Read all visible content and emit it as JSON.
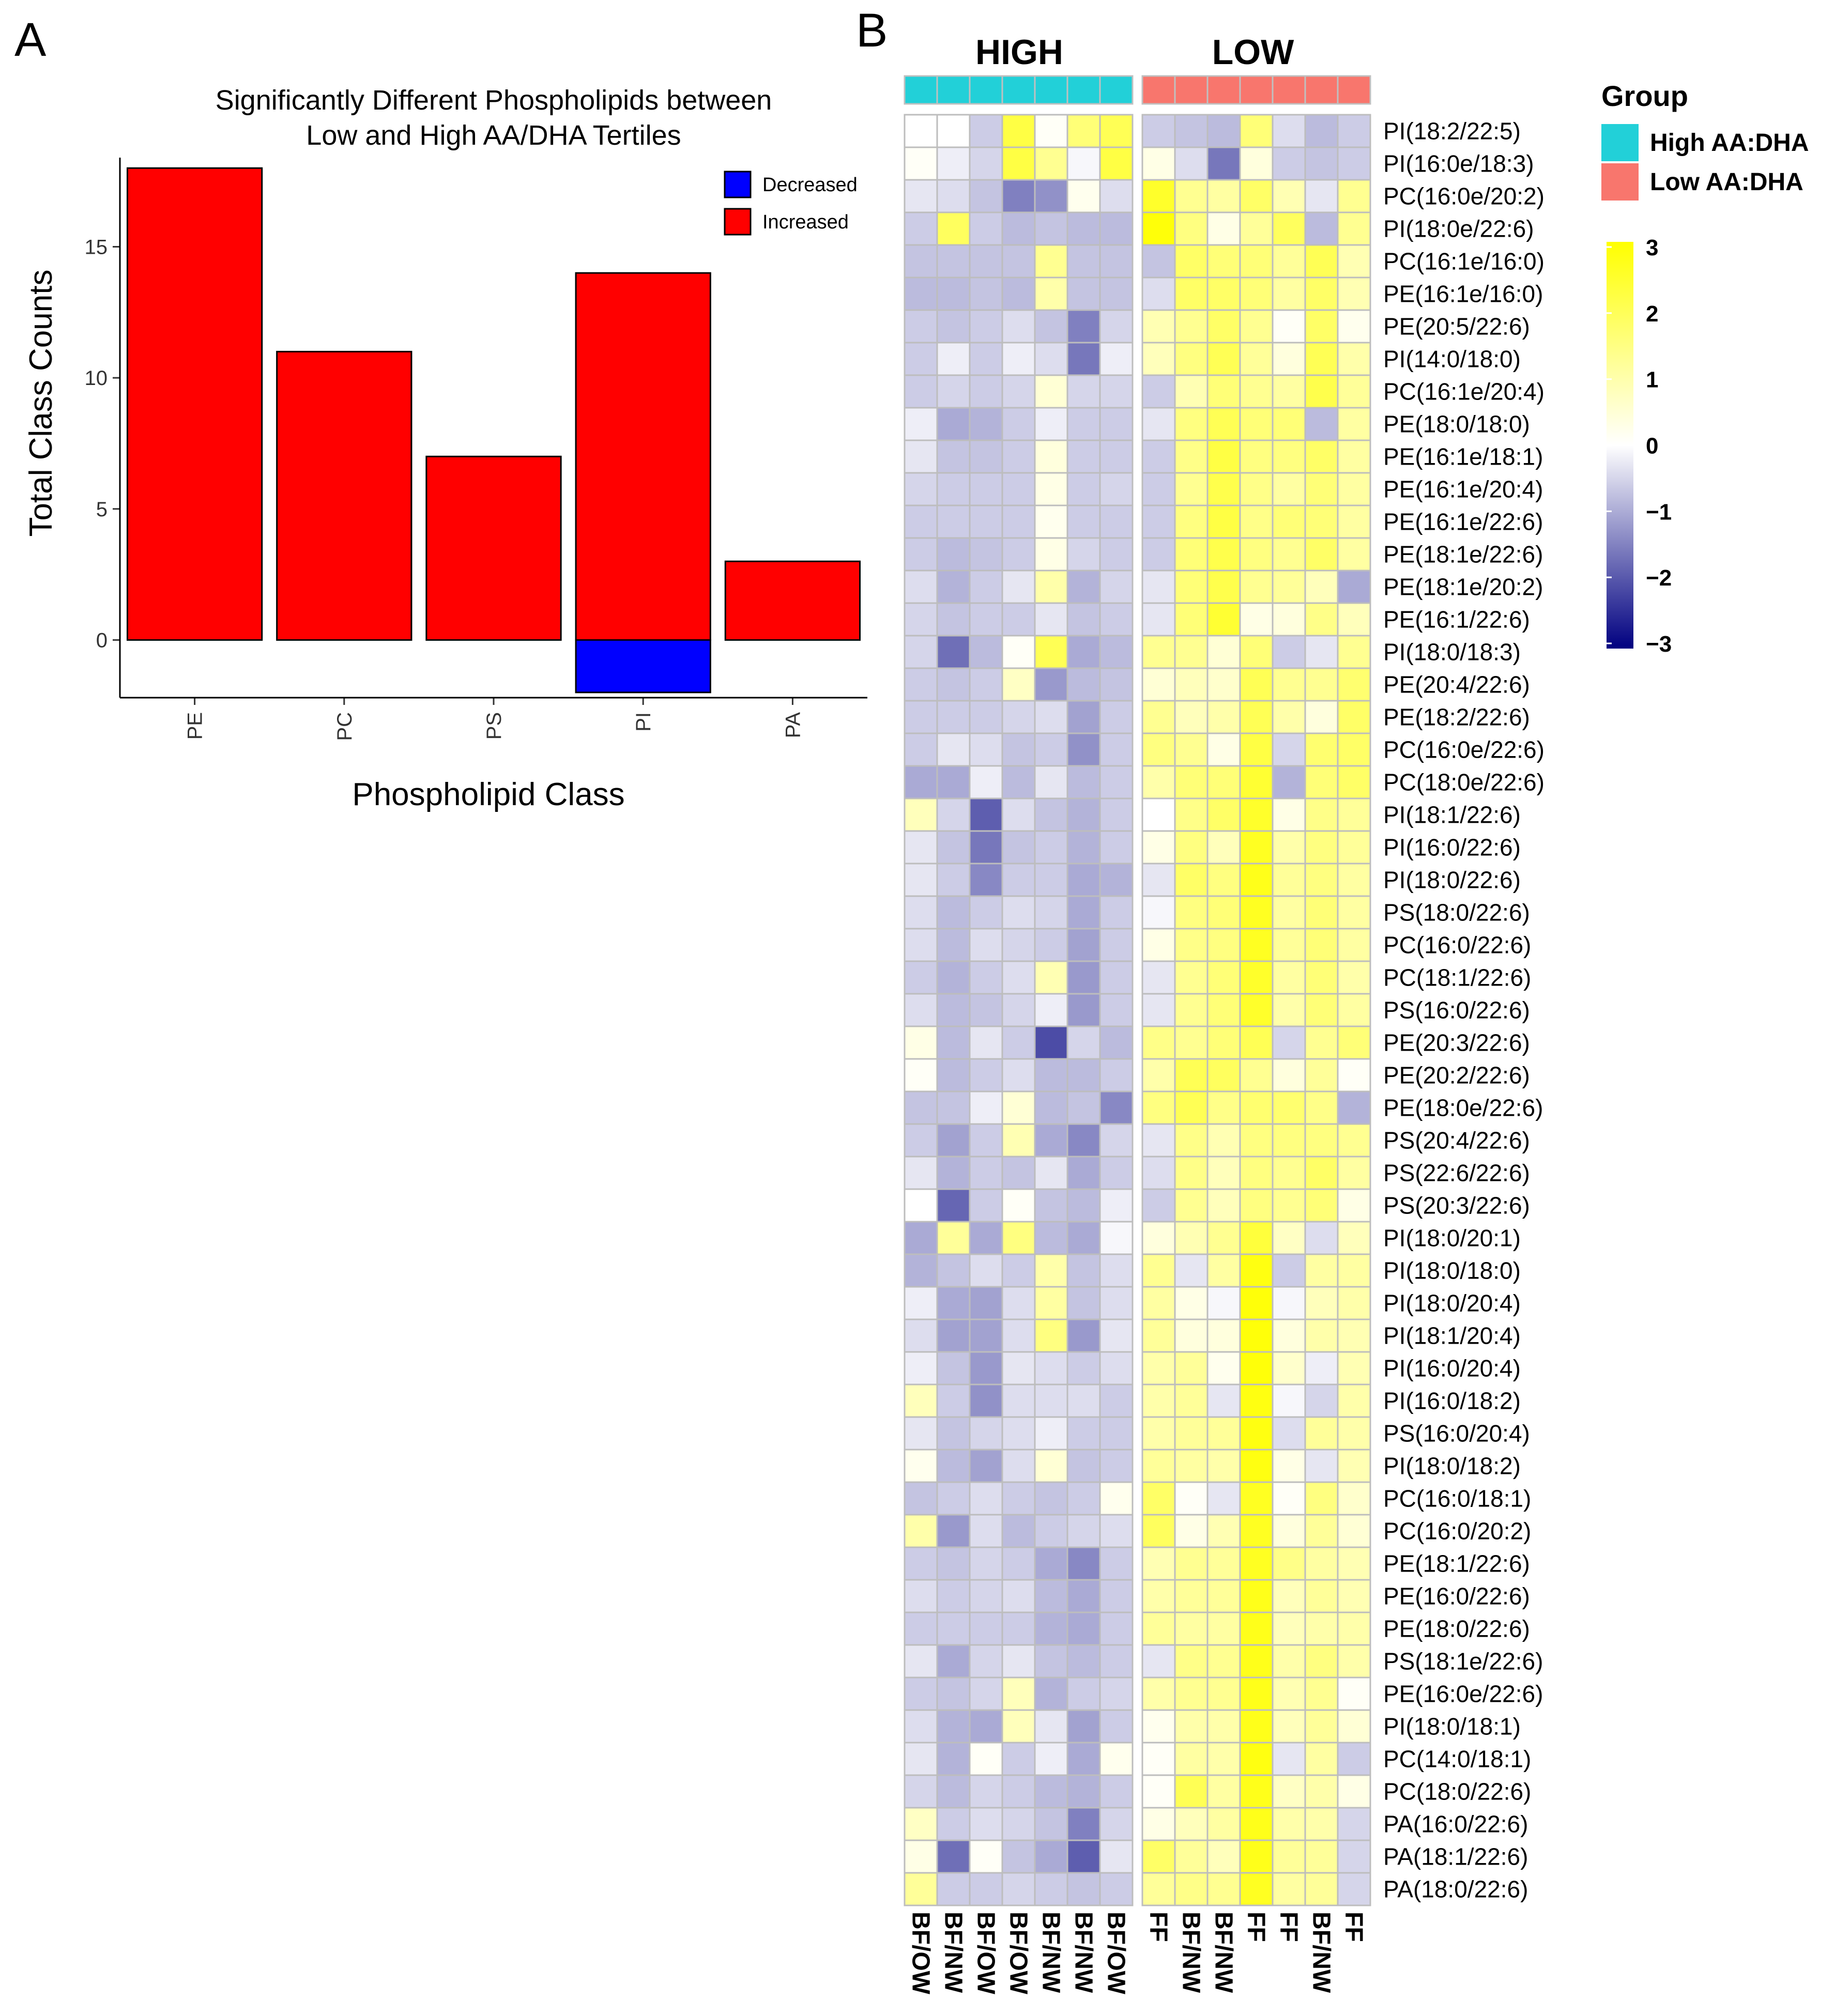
{
  "panel_a_letter": "A",
  "panel_b_letter": "B",
  "chart_data": [
    {
      "type": "bar",
      "title": "Significantly Different Phospholipids between Low and High AA/DHA Tertiles",
      "title_lines": [
        "Significantly Different Phospholipids between",
        "Low and High AA/DHA Tertiles"
      ],
      "xlabel": "Phospholipid Class",
      "ylabel": "Total Class Counts",
      "categories": [
        "PE",
        "PC",
        "PS",
        "PI",
        "PA"
      ],
      "series": [
        {
          "name": "Increased",
          "color": "#ff0000",
          "values": [
            18,
            11,
            7,
            14,
            3
          ]
        },
        {
          "name": "Decreased",
          "color": "#0000ff",
          "values": [
            0,
            0,
            0,
            -2,
            0
          ]
        }
      ],
      "ylim": [
        -2.2,
        18.4
      ],
      "yticks": [
        0,
        5,
        10,
        15
      ],
      "legend": [
        {
          "label": "Decreased",
          "color": "#0000ff"
        },
        {
          "label": "Increased",
          "color": "#ff0000"
        }
      ],
      "legend_position": "top-right"
    },
    {
      "type": "heatmap",
      "group_headers": [
        "HIGH",
        "LOW"
      ],
      "columns": [
        "BF/OW",
        "BF/NW",
        "BF/OW",
        "BF/OW",
        "BF/NW",
        "BF/NW",
        "BF/OW",
        "FF",
        "BF/NW",
        "BF/NW",
        "FF",
        "FF",
        "BF/NW",
        "FF"
      ],
      "column_groups": [
        "High AA:DHA",
        "High AA:DHA",
        "High AA:DHA",
        "High AA:DHA",
        "High AA:DHA",
        "High AA:DHA",
        "High AA:DHA",
        "Low AA:DHA",
        "Low AA:DHA",
        "Low AA:DHA",
        "Low AA:DHA",
        "Low AA:DHA",
        "Low AA:DHA",
        "Low AA:DHA"
      ],
      "rows": [
        "PI(18:2/22:5)",
        "PI(16:0e/18:3)",
        "PC(16:0e/20:2)",
        "PI(18:0e/22:6)",
        "PC(16:1e/16:0)",
        "PE(16:1e/16:0)",
        "PE(20:5/22:6)",
        "PI(14:0/18:0)",
        "PC(16:1e/20:4)",
        "PE(18:0/18:0)",
        "PE(16:1e/18:1)",
        "PE(16:1e/20:4)",
        "PE(16:1e/22:6)",
        "PE(18:1e/22:6)",
        "PE(18:1e/20:2)",
        "PE(16:1/22:6)",
        "PI(18:0/18:3)",
        "PE(20:4/22:6)",
        "PE(18:2/22:6)",
        "PC(16:0e/22:6)",
        "PC(18:0e/22:6)",
        "PI(18:1/22:6)",
        "PI(16:0/22:6)",
        "PI(18:0/22:6)",
        "PS(18:0/22:6)",
        "PC(16:0/22:6)",
        "PC(18:1/22:6)",
        "PS(16:0/22:6)",
        "PE(20:3/22:6)",
        "PE(20:2/22:6)",
        "PE(18:0e/22:6)",
        "PS(20:4/22:6)",
        "PS(22:6/22:6)",
        "PS(20:3/22:6)",
        "PI(18:0/20:1)",
        "PI(18:0/18:0)",
        "PI(18:0/20:4)",
        "PI(18:1/20:4)",
        "PI(16:0/20:4)",
        "PI(16:0/18:2)",
        "PS(16:0/20:4)",
        "PI(18:0/18:2)",
        "PC(16:0/18:1)",
        "PC(16:0/20:2)",
        "PE(18:1/22:6)",
        "PE(16:0/22:6)",
        "PE(18:0/22:6)",
        "PS(18:1e/22:6)",
        "PE(16:0e/22:6)",
        "PI(18:0/18:1)",
        "PC(14:0/18:1)",
        "PC(18:0/22:6)",
        "PA(16:0/22:6)",
        "PA(18:1/22:6)",
        "PA(18:0/22:6)"
      ],
      "values": [
        [
          0.0,
          0.0,
          -0.6,
          2.2,
          0.1,
          1.6,
          2.0,
          -0.6,
          -0.7,
          -0.8,
          1.6,
          -0.4,
          -0.8,
          -0.6
        ],
        [
          0.1,
          -0.2,
          -0.5,
          2.2,
          1.3,
          -0.1,
          2.2,
          0.3,
          -0.4,
          -1.6,
          0.4,
          -0.6,
          -0.7,
          -0.6
        ],
        [
          -0.3,
          -0.4,
          -0.7,
          -1.5,
          -1.3,
          0.2,
          -0.4,
          2.5,
          1.3,
          1.1,
          1.8,
          0.9,
          -0.3,
          1.3
        ],
        [
          -0.6,
          1.9,
          -0.6,
          -0.8,
          -0.7,
          -0.8,
          -0.8,
          2.9,
          1.5,
          0.3,
          1.2,
          1.9,
          -0.8,
          1.3
        ],
        [
          -0.7,
          -0.7,
          -0.7,
          -0.7,
          1.3,
          -0.7,
          -0.7,
          -0.7,
          1.8,
          1.6,
          1.6,
          1.2,
          2.0,
          0.9
        ],
        [
          -0.8,
          -0.8,
          -0.7,
          -0.8,
          1.0,
          -0.7,
          -0.7,
          -0.4,
          1.8,
          1.8,
          1.6,
          1.1,
          1.8,
          0.9
        ],
        [
          -0.6,
          -0.7,
          -0.6,
          -0.4,
          -0.7,
          -1.5,
          -0.5,
          0.9,
          1.3,
          1.8,
          1.3,
          0.1,
          1.8,
          0.2
        ],
        [
          -0.6,
          -0.2,
          -0.6,
          -0.2,
          -0.4,
          -1.6,
          -0.2,
          0.8,
          1.5,
          2.0,
          1.2,
          0.4,
          2.0,
          1.0
        ],
        [
          -0.6,
          -0.5,
          -0.6,
          -0.5,
          0.5,
          -0.5,
          -0.5,
          -0.6,
          0.9,
          1.6,
          1.3,
          1.1,
          2.1,
          1.2
        ],
        [
          -0.2,
          -1.0,
          -0.9,
          -0.6,
          -0.2,
          -0.6,
          -0.6,
          -0.3,
          1.5,
          2.0,
          1.6,
          1.6,
          -0.8,
          1.1
        ],
        [
          -0.3,
          -0.7,
          -0.7,
          -0.6,
          0.4,
          -0.6,
          -0.6,
          -0.6,
          1.4,
          2.2,
          1.5,
          1.5,
          1.8,
          1.1
        ],
        [
          -0.5,
          -0.6,
          -0.6,
          -0.6,
          0.3,
          -0.6,
          -0.5,
          -0.6,
          1.3,
          2.1,
          1.4,
          1.1,
          1.6,
          1.1
        ],
        [
          -0.6,
          -0.6,
          -0.6,
          -0.6,
          0.2,
          -0.6,
          -0.6,
          -0.6,
          1.5,
          2.2,
          1.4,
          1.6,
          1.6,
          1.1
        ],
        [
          -0.6,
          -0.8,
          -0.7,
          -0.6,
          0.3,
          -0.5,
          -0.6,
          -0.6,
          1.6,
          2.1,
          1.5,
          1.3,
          1.8,
          1.1
        ],
        [
          -0.4,
          -0.9,
          -0.6,
          -0.3,
          1.0,
          -0.9,
          -0.5,
          -0.3,
          1.6,
          2.1,
          1.3,
          1.2,
          0.8,
          -1.0
        ],
        [
          -0.5,
          -0.7,
          -0.6,
          -0.6,
          -0.3,
          -0.7,
          -0.6,
          -0.3,
          1.6,
          2.4,
          0.3,
          0.4,
          1.4,
          0.8
        ],
        [
          -0.5,
          -1.7,
          -0.8,
          0.1,
          2.0,
          -1.0,
          -0.8,
          1.3,
          1.3,
          0.5,
          1.6,
          -0.6,
          -0.3,
          1.3
        ],
        [
          -0.6,
          -0.7,
          -0.6,
          0.7,
          -1.2,
          -0.8,
          -0.7,
          0.5,
          0.8,
          0.6,
          2.0,
          1.3,
          1.3,
          1.7
        ],
        [
          -0.6,
          -0.6,
          -0.6,
          -0.5,
          -0.4,
          -1.1,
          -0.6,
          1.3,
          0.8,
          1.0,
          2.0,
          1.0,
          0.4,
          1.8
        ],
        [
          -0.6,
          -0.3,
          -0.4,
          -0.7,
          -0.6,
          -1.3,
          -0.6,
          1.5,
          1.3,
          0.3,
          2.2,
          -0.5,
          1.7,
          1.8
        ],
        [
          -1.0,
          -1.0,
          -0.2,
          -0.8,
          -0.3,
          -0.8,
          -0.6,
          1.0,
          1.6,
          1.6,
          2.4,
          -0.9,
          1.6,
          1.8
        ],
        [
          0.8,
          -0.5,
          -1.9,
          -0.4,
          -0.7,
          -0.9,
          -0.6,
          0.0,
          1.4,
          1.8,
          2.5,
          0.3,
          1.4,
          1.2
        ],
        [
          -0.3,
          -0.7,
          -1.6,
          -0.7,
          -0.6,
          -0.9,
          -0.6,
          0.3,
          1.5,
          0.8,
          2.6,
          1.0,
          1.5,
          1.2
        ],
        [
          -0.3,
          -0.6,
          -1.4,
          -0.6,
          -0.6,
          -1.0,
          -0.9,
          -0.3,
          1.8,
          1.5,
          2.7,
          1.2,
          1.5,
          1.1
        ],
        [
          -0.4,
          -0.8,
          -0.6,
          -0.4,
          -0.5,
          -1.0,
          -0.6,
          -0.1,
          1.5,
          1.6,
          2.6,
          1.1,
          1.6,
          1.1
        ],
        [
          -0.4,
          -0.8,
          -0.4,
          -0.5,
          -0.6,
          -1.1,
          -0.6,
          0.3,
          1.4,
          1.5,
          2.6,
          1.2,
          1.6,
          1.1
        ],
        [
          -0.6,
          -0.9,
          -0.6,
          -0.4,
          0.9,
          -1.2,
          -0.6,
          -0.3,
          1.3,
          1.6,
          2.5,
          1.1,
          1.6,
          1.0
        ],
        [
          -0.4,
          -0.8,
          -0.7,
          -0.5,
          -0.2,
          -1.2,
          -0.6,
          -0.3,
          1.3,
          1.6,
          2.5,
          1.0,
          1.6,
          1.1
        ],
        [
          0.3,
          -0.8,
          -0.3,
          -0.6,
          -2.1,
          -0.5,
          -0.8,
          1.4,
          1.3,
          1.6,
          2.0,
          -0.5,
          1.3,
          1.6
        ],
        [
          0.1,
          -0.8,
          -0.6,
          -0.4,
          -0.8,
          -0.8,
          -0.6,
          1.0,
          2.0,
          1.9,
          1.3,
          0.4,
          1.2,
          0.1
        ],
        [
          -0.7,
          -0.7,
          -0.2,
          0.5,
          -0.8,
          -0.7,
          -1.4,
          1.5,
          2.0,
          1.4,
          1.7,
          1.7,
          1.4,
          -0.9
        ],
        [
          -0.6,
          -1.1,
          -0.6,
          0.9,
          -1.0,
          -1.4,
          -0.5,
          -0.3,
          1.4,
          0.9,
          1.5,
          1.5,
          1.5,
          1.3
        ],
        [
          -0.3,
          -0.9,
          -0.6,
          -0.7,
          -0.3,
          -1.0,
          -0.6,
          -0.4,
          1.4,
          0.8,
          1.5,
          1.3,
          1.8,
          1.1
        ],
        [
          0.0,
          -1.8,
          -0.6,
          0.1,
          -0.7,
          -0.8,
          -0.2,
          -0.6,
          1.3,
          0.8,
          1.5,
          1.3,
          1.6,
          0.3
        ],
        [
          -1.0,
          1.2,
          -1.0,
          1.5,
          -0.8,
          -1.0,
          -0.1,
          0.4,
          0.9,
          1.3,
          2.3,
          0.7,
          -0.4,
          0.8
        ],
        [
          -0.9,
          -0.7,
          -0.4,
          -0.6,
          1.0,
          -0.7,
          -0.4,
          1.3,
          -0.3,
          1.1,
          2.8,
          -0.6,
          1.1,
          1.1
        ],
        [
          -0.2,
          -1.0,
          -1.1,
          -0.4,
          1.1,
          -0.7,
          -0.4,
          1.1,
          0.3,
          -0.1,
          2.9,
          -0.1,
          0.8,
          1.0
        ],
        [
          -0.4,
          -1.1,
          -1.1,
          -0.4,
          1.5,
          -1.2,
          -0.3,
          1.2,
          0.4,
          0.4,
          2.9,
          0.4,
          1.0,
          0.9
        ],
        [
          -0.2,
          -0.7,
          -1.2,
          -0.3,
          -0.4,
          -0.6,
          -0.4,
          1.0,
          1.2,
          0.2,
          2.9,
          0.6,
          -0.2,
          0.9
        ],
        [
          0.8,
          -0.6,
          -1.3,
          -0.4,
          -0.4,
          -0.4,
          -0.6,
          1.0,
          1.2,
          -0.3,
          2.8,
          -0.1,
          -0.5,
          1.0
        ],
        [
          -0.3,
          -0.7,
          -0.5,
          -0.4,
          -0.2,
          -0.6,
          -0.6,
          1.0,
          1.2,
          1.2,
          2.8,
          -0.4,
          1.2,
          1.0
        ],
        [
          0.2,
          -0.8,
          -1.1,
          -0.4,
          0.5,
          -0.7,
          -0.6,
          1.2,
          1.1,
          1.0,
          2.8,
          0.3,
          -0.3,
          0.9
        ],
        [
          -0.7,
          -0.6,
          -0.4,
          -0.6,
          -0.7,
          -0.6,
          0.2,
          1.8,
          0.1,
          -0.3,
          2.6,
          0.1,
          1.5,
          0.6
        ],
        [
          1.0,
          -1.2,
          -0.4,
          -0.8,
          -0.6,
          -0.5,
          -0.4,
          1.9,
          0.3,
          0.9,
          2.6,
          0.4,
          1.2,
          0.5
        ],
        [
          -0.6,
          -0.7,
          -0.5,
          -0.6,
          -1.0,
          -1.4,
          -0.6,
          0.9,
          1.3,
          1.2,
          2.6,
          1.4,
          1.1,
          0.9
        ],
        [
          -0.4,
          -0.6,
          -0.5,
          -0.4,
          -0.8,
          -1.0,
          -0.6,
          1.0,
          1.2,
          1.2,
          2.7,
          0.8,
          1.2,
          0.9
        ],
        [
          -0.6,
          -0.6,
          -0.6,
          -0.6,
          -0.9,
          -1.0,
          -0.6,
          1.2,
          1.1,
          1.1,
          2.7,
          0.8,
          1.0,
          1.0
        ],
        [
          -0.3,
          -1.0,
          -0.5,
          -0.3,
          -0.7,
          -0.8,
          -0.6,
          -0.3,
          1.4,
          1.3,
          2.7,
          1.0,
          1.5,
          1.0
        ],
        [
          -0.6,
          -0.7,
          -0.5,
          0.8,
          -0.9,
          -0.6,
          -0.5,
          1.0,
          1.3,
          1.3,
          2.7,
          0.9,
          1.3,
          0.1
        ],
        [
          -0.4,
          -0.9,
          -1.0,
          0.8,
          -0.3,
          -1.1,
          -0.6,
          0.2,
          1.0,
          1.0,
          2.7,
          0.8,
          1.2,
          0.5
        ],
        [
          -0.3,
          -0.9,
          0.1,
          -0.6,
          -0.2,
          -1.0,
          0.2,
          0.1,
          1.1,
          1.0,
          2.8,
          -0.3,
          1.1,
          -0.6
        ],
        [
          -0.5,
          -0.8,
          -0.5,
          -0.6,
          -0.8,
          -0.9,
          -0.6,
          0.1,
          2.0,
          1.1,
          2.7,
          0.7,
          1.0,
          0.3
        ],
        [
          0.7,
          -0.6,
          -0.4,
          -0.5,
          -0.7,
          -1.5,
          -0.5,
          0.3,
          0.8,
          1.1,
          2.7,
          1.0,
          1.0,
          -0.5
        ],
        [
          0.3,
          -1.7,
          0.1,
          -0.7,
          -1.0,
          -1.9,
          -0.3,
          1.8,
          1.2,
          0.8,
          2.7,
          1.2,
          1.2,
          -0.5
        ],
        [
          1.2,
          -0.6,
          -0.6,
          -0.5,
          -0.6,
          -0.7,
          -0.6,
          1.2,
          1.4,
          1.3,
          2.6,
          1.1,
          1.2,
          -0.5
        ]
      ],
      "colorscale": {
        "low": "#000080",
        "mid": "#ffffff",
        "high": "#ffff00",
        "range": [
          -3,
          3
        ]
      },
      "colorbar_ticks": [
        "3",
        "2",
        "1",
        "0",
        "−1",
        "−2",
        "−3"
      ],
      "legend_title": "Group",
      "legend": [
        {
          "label": "High AA:DHA",
          "color": "#22d0d8"
        },
        {
          "label": "Low AA:DHA",
          "color": "#f8766d"
        }
      ]
    }
  ]
}
